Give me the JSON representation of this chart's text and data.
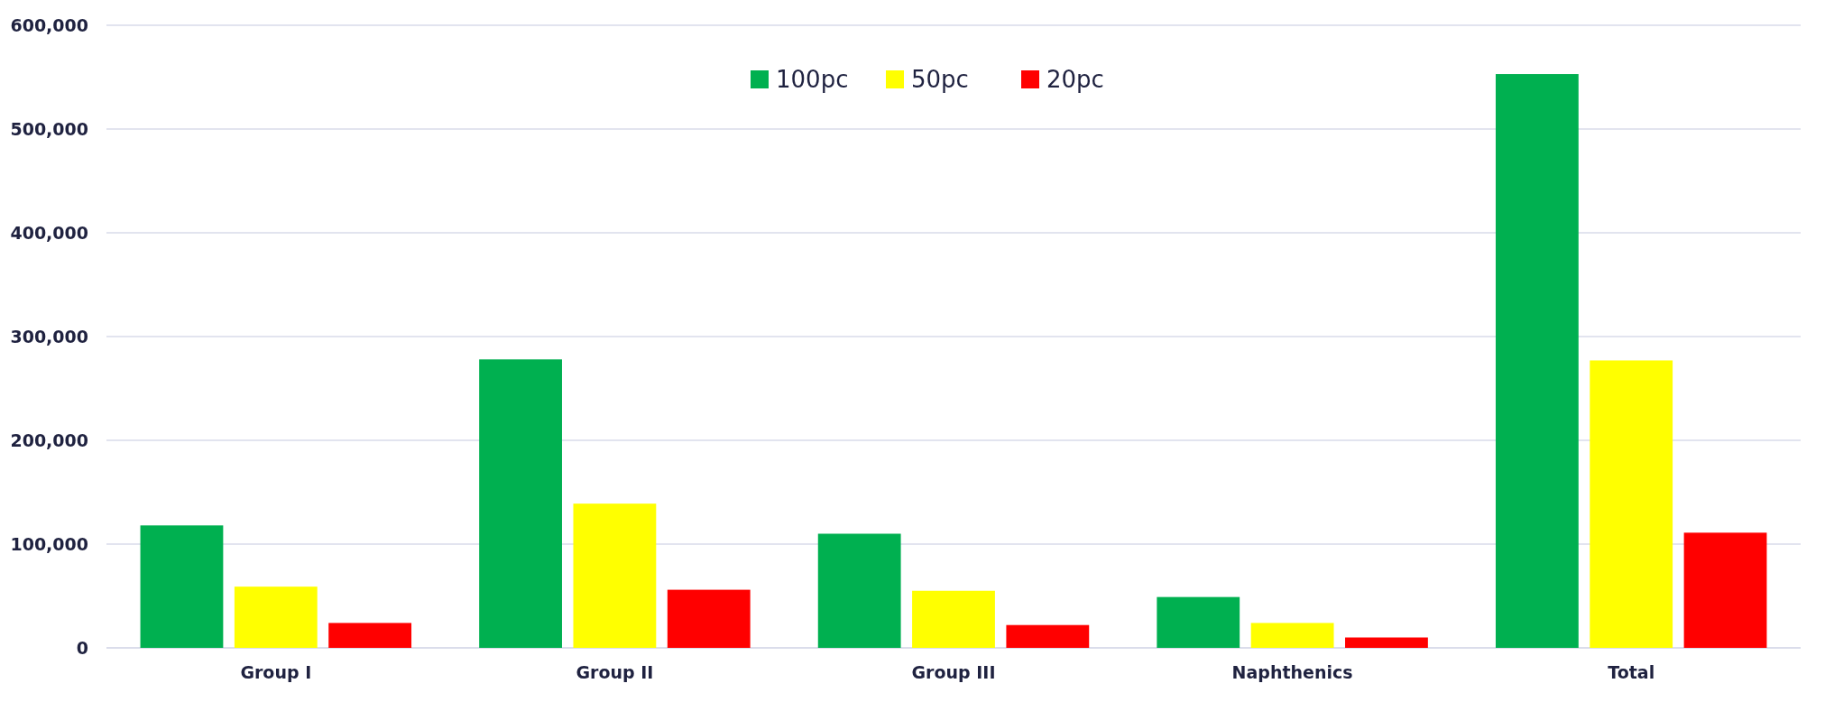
{
  "chart_data": {
    "type": "bar",
    "categories": [
      "Group I",
      "Group II",
      "Group III",
      "Naphthenics",
      "Total"
    ],
    "series": [
      {
        "name": "100pc",
        "color": "#00b050",
        "values": [
          118000,
          278000,
          110000,
          49000,
          553000
        ]
      },
      {
        "name": "50pc",
        "color": "#ffff00",
        "values": [
          59000,
          139000,
          55000,
          24000,
          277000
        ]
      },
      {
        "name": "20pc",
        "color": "#ff0000",
        "values": [
          24000,
          56000,
          22000,
          10000,
          111000
        ]
      }
    ],
    "ylim": [
      0,
      600000
    ],
    "yticks": [
      {
        "value": 0,
        "label": "0"
      },
      {
        "value": 100000,
        "label": "100,000"
      },
      {
        "value": 200000,
        "label": "200,000"
      },
      {
        "value": 300000,
        "label": "300,000"
      },
      {
        "value": 400000,
        "label": "400,000"
      },
      {
        "value": 500000,
        "label": "500,000"
      },
      {
        "value": 600000,
        "label": "600,000"
      }
    ],
    "grid": "y",
    "legend": "top"
  }
}
